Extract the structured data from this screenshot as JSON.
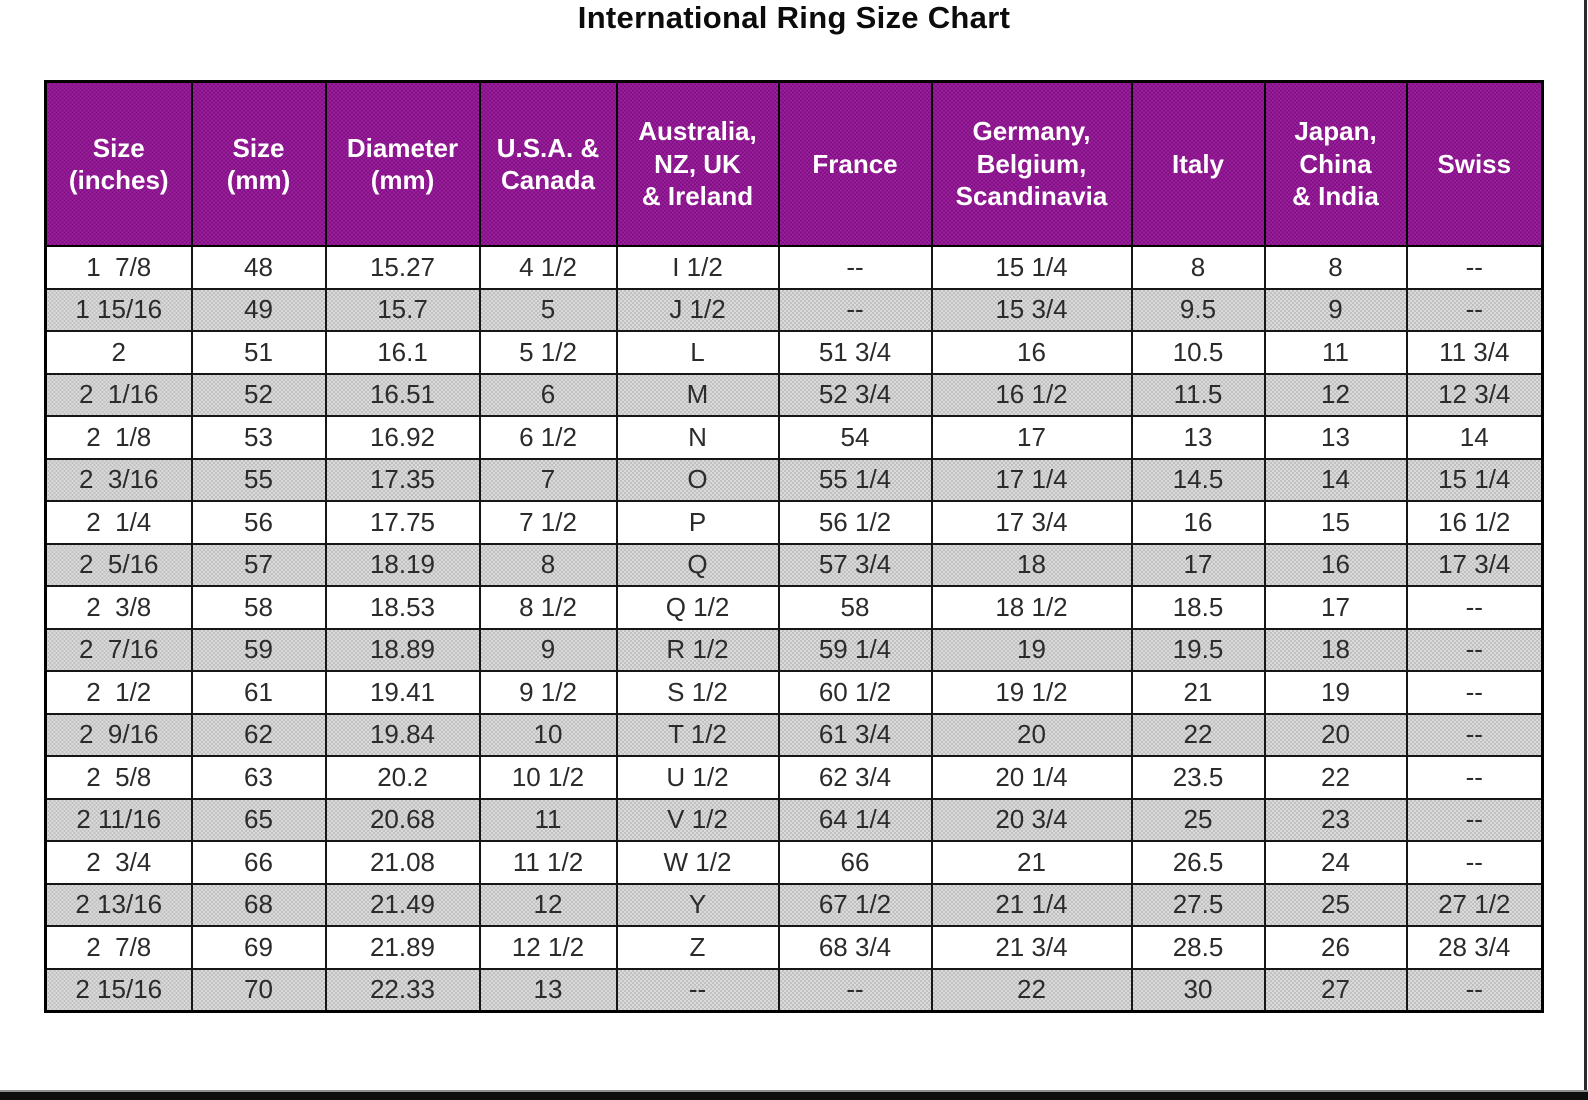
{
  "title": "International Ring Size Chart",
  "colors": {
    "header_bg": "#8d188f",
    "header_text": "#ffffff",
    "alt_row_bg": "#cdcdcd",
    "body_text": "#2b2b2b",
    "border": "#000000"
  },
  "chart_data": {
    "type": "table",
    "title": "International Ring Size Chart",
    "columns": [
      {
        "id": "size-inches",
        "label": "Size\n(inches)"
      },
      {
        "id": "size-mm",
        "label": "Size\n(mm)"
      },
      {
        "id": "diameter-mm",
        "label": "Diameter\n(mm)"
      },
      {
        "id": "usa-canada",
        "label": "U.S.A. &\nCanada"
      },
      {
        "id": "australia-nz-uk-ireland",
        "label": "Australia,\nNZ, UK\n& Ireland"
      },
      {
        "id": "france",
        "label": "France"
      },
      {
        "id": "germany-belgium-scandinavia",
        "label": "Germany,\nBelgium,\nScandinavia"
      },
      {
        "id": "italy",
        "label": "Italy"
      },
      {
        "id": "japan-china-india",
        "label": "Japan,\nChina\n& India"
      },
      {
        "id": "swiss",
        "label": "Swiss"
      }
    ],
    "rows": [
      [
        "1  7/8",
        "48",
        "15.27",
        "4 1/2",
        "I 1/2",
        "--",
        "15 1/4",
        "8",
        "8",
        "--"
      ],
      [
        "1 15/16",
        "49",
        "15.7",
        "5",
        "J 1/2",
        "--",
        "15 3/4",
        "9.5",
        "9",
        "--"
      ],
      [
        "2",
        "51",
        "16.1",
        "5 1/2",
        "L",
        "51 3/4",
        "16",
        "10.5",
        "11",
        "11 3/4"
      ],
      [
        "2  1/16",
        "52",
        "16.51",
        "6",
        "M",
        "52 3/4",
        "16 1/2",
        "11.5",
        "12",
        "12 3/4"
      ],
      [
        "2  1/8",
        "53",
        "16.92",
        "6 1/2",
        "N",
        "54",
        "17",
        "13",
        "13",
        "14"
      ],
      [
        "2  3/16",
        "55",
        "17.35",
        "7",
        "O",
        "55 1/4",
        "17 1/4",
        "14.5",
        "14",
        "15 1/4"
      ],
      [
        "2  1/4",
        "56",
        "17.75",
        "7 1/2",
        "P",
        "56 1/2",
        "17 3/4",
        "16",
        "15",
        "16 1/2"
      ],
      [
        "2  5/16",
        "57",
        "18.19",
        "8",
        "Q",
        "57 3/4",
        "18",
        "17",
        "16",
        "17 3/4"
      ],
      [
        "2  3/8",
        "58",
        "18.53",
        "8 1/2",
        "Q 1/2",
        "58",
        "18 1/2",
        "18.5",
        "17",
        "--"
      ],
      [
        "2  7/16",
        "59",
        "18.89",
        "9",
        "R 1/2",
        "59 1/4",
        "19",
        "19.5",
        "18",
        "--"
      ],
      [
        "2  1/2",
        "61",
        "19.41",
        "9 1/2",
        "S 1/2",
        "60 1/2",
        "19 1/2",
        "21",
        "19",
        "--"
      ],
      [
        "2  9/16",
        "62",
        "19.84",
        "10",
        "T 1/2",
        "61 3/4",
        "20",
        "22",
        "20",
        "--"
      ],
      [
        "2  5/8",
        "63",
        "20.2",
        "10 1/2",
        "U 1/2",
        "62 3/4",
        "20 1/4",
        "23.5",
        "22",
        "--"
      ],
      [
        "2 11/16",
        "65",
        "20.68",
        "11",
        "V 1/2",
        "64 1/4",
        "20 3/4",
        "25",
        "23",
        "--"
      ],
      [
        "2  3/4",
        "66",
        "21.08",
        "11 1/2",
        "W 1/2",
        "66",
        "21",
        "26.5",
        "24",
        "--"
      ],
      [
        "2 13/16",
        "68",
        "21.49",
        "12",
        "Y",
        "67 1/2",
        "21 1/4",
        "27.5",
        "25",
        "27 1/2"
      ],
      [
        "2  7/8",
        "69",
        "21.89",
        "12 1/2",
        "Z",
        "68 3/4",
        "21 3/4",
        "28.5",
        "26",
        "28 3/4"
      ],
      [
        "2 15/16",
        "70",
        "22.33",
        "13",
        "--",
        "--",
        "22",
        "30",
        "27",
        "--"
      ]
    ]
  }
}
